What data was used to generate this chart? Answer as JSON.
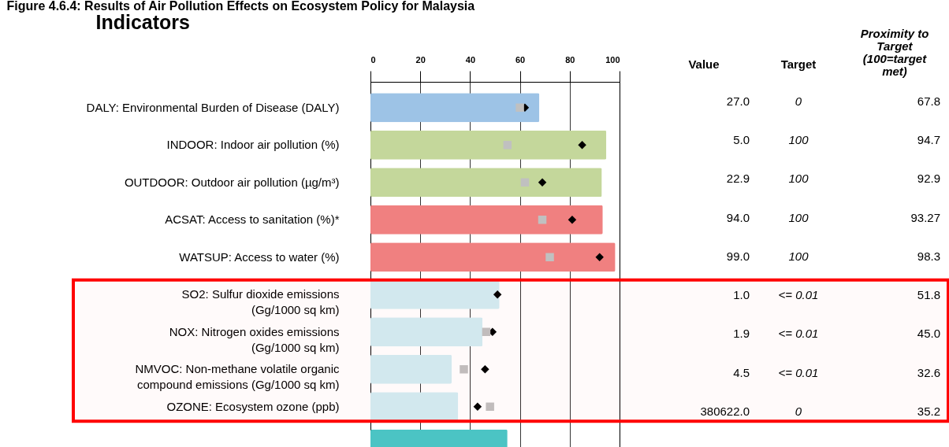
{
  "chart_data": {
    "type": "bar",
    "orientation": "horizontal",
    "title": "Figure 4.6.4: Results of Air Pollution Effects on Ecosystem Policy for Malaysia",
    "categories": [
      "DALY: Environmental Burden of Disease (DALY)",
      "INDOOR: Indoor air pollution (%)",
      "OUTDOOR: Outdoor air pollution (µg/m³)",
      "ACSAT: Access to sanitation (%)*",
      "WATSUP: Access to water (%)",
      "SO2: Sulfur dioxide emissions (Gg/1000 sq km)",
      "NOX: Nitrogen oxides emissions (Gg/1000 sq km)",
      "NMVOC: Non-methane volatile organic compound emissions (Gg/1000 sq km)",
      "OZONE: Ecosystem ozone (ppb)",
      null
    ],
    "series": [
      {
        "colors": [
          "#9dc3e6",
          "#c4d79b",
          "#c4d79b",
          "#f08080",
          "#f08080",
          "#d2edf3",
          "#d2edf3",
          "#d2edf3",
          "#d2edf3",
          "#4bc4c4"
        ],
        "values": [
          67.8,
          94.7,
          92.9,
          93.27,
          98.3,
          51.8,
          45.0,
          32.6,
          35.2,
          55
        ],
        "value_labels": [
          "67.8",
          "94.7",
          "92.9",
          "93.27",
          "98.3",
          "51.8",
          "45.0",
          "32.6",
          "35.2",
          null
        ]
      },
      {
        "type": "scatter",
        "marker": "diamond",
        "color": "#000000",
        "values": [
          62,
          85,
          69,
          81,
          92,
          51,
          49,
          46,
          43,
          null
        ]
      },
      {
        "type": "scatter",
        "marker": "square",
        "color": "#c0c0c0",
        "values": [
          60,
          55,
          62,
          69,
          72,
          null,
          46.5,
          37.5,
          48,
          null
        ]
      }
    ],
    "xlim": [
      0,
      100
    ],
    "xticks": [
      0,
      20,
      40,
      60,
      80,
      100
    ],
    "grid": "x",
    "bands": [
      {
        "axis": "y",
        "from": "SO2: Sulfur dioxide emissions (Gg/1000 sq km)",
        "to": "OZONE: Ecosystem ozone (ppb)",
        "color": "#ff0000"
      }
    ],
    "annotations": [
      "Indicators",
      "Value",
      "Target",
      "Proximity to Target (100=target met)",
      "27.0",
      "5.0",
      "22.9",
      "94.0",
      "99.0",
      "1.0",
      "1.9",
      "4.5",
      "380622.0",
      "0",
      "100",
      "100",
      "100",
      "100",
      "<= 0.01",
      "<= 0.01",
      "<= 0.01",
      "0"
    ]
  }
}
